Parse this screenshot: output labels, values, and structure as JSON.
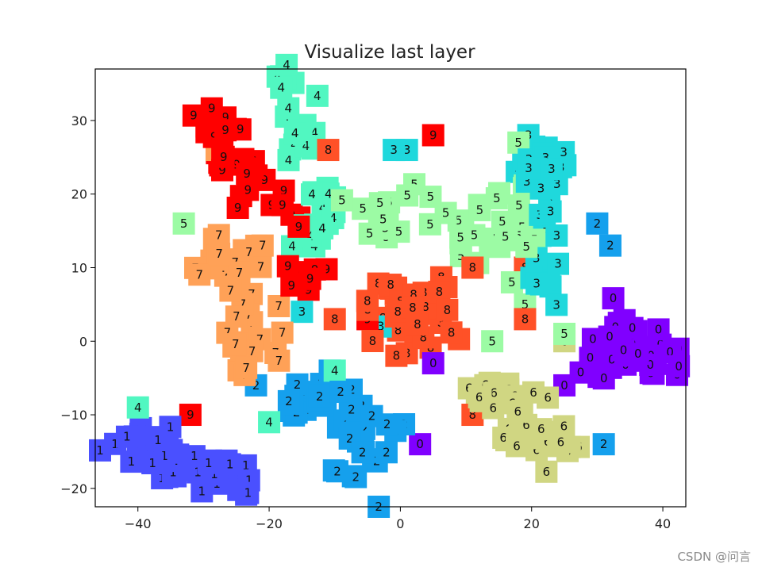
{
  "chart_data": {
    "type": "scatter",
    "title": "Visualize last layer",
    "xlim": [
      -46.5,
      43.5
    ],
    "ylim": [
      -22.5,
      37
    ],
    "xticks": [
      -40,
      -20,
      0,
      20,
      40
    ],
    "yticks": [
      -20,
      -10,
      0,
      10,
      20,
      30
    ],
    "xtick_labels": [
      "−40",
      "−20",
      "0",
      "20",
      "40"
    ],
    "ytick_labels": [
      "−20",
      "−10",
      "0",
      "10",
      "20",
      "30"
    ],
    "grid": false,
    "classes": [
      {
        "label": "0",
        "color": "#8000ff",
        "centers": [
          [
            37,
            -1
          ],
          [
            31,
            -3
          ],
          [
            39,
            -3
          ],
          [
            34,
            1
          ]
        ],
        "spread": [
          3.5,
          3.2
        ],
        "count": 45,
        "outliers": [
          [
            5,
            -3
          ],
          [
            3,
            -14
          ],
          [
            25,
            -6
          ]
        ]
      },
      {
        "label": "1",
        "color": "#4a50ff",
        "centers": [
          [
            -38,
            -15
          ],
          [
            -33,
            -17
          ],
          [
            -26,
            -17
          ],
          [
            -42,
            -13
          ]
        ],
        "spread": [
          3,
          2
        ],
        "count": 45,
        "outliers": []
      },
      {
        "label": "2",
        "color": "#15a0ed",
        "centers": [
          [
            -3,
            -14
          ],
          [
            -5,
            -18
          ],
          [
            -7,
            -11
          ],
          [
            -13,
            -7
          ],
          [
            -16,
            -8
          ]
        ],
        "spread": [
          3,
          3
        ],
        "count": 45,
        "outliers": [
          [
            31,
            -14
          ],
          [
            -22,
            -6
          ],
          [
            30,
            16
          ],
          [
            32,
            13
          ]
        ]
      },
      {
        "label": "3",
        "color": "#1fd8dc",
        "centers": [
          [
            22,
            20
          ],
          [
            23,
            14
          ],
          [
            22,
            8
          ],
          [
            21,
            25
          ]
        ],
        "spread": [
          2.5,
          3
        ],
        "count": 40,
        "outliers": [
          [
            -1,
            26
          ],
          [
            1,
            26
          ],
          [
            -3,
            2
          ],
          [
            2,
            5
          ],
          [
            -15,
            4
          ]
        ]
      },
      {
        "label": "4",
        "color": "#51f7c1",
        "centers": [
          [
            -16,
            31
          ],
          [
            -14,
            27
          ],
          [
            -12,
            20
          ],
          [
            -14,
            14
          ],
          [
            -19,
            35
          ]
        ],
        "spread": [
          2.4,
          2.8
        ],
        "count": 38,
        "outliers": [
          [
            -40,
            -9
          ],
          [
            -20,
            -11
          ],
          [
            -10,
            -4
          ]
        ]
      },
      {
        "label": "5",
        "color": "#9cfba4",
        "centers": [
          [
            5,
            19
          ],
          [
            12,
            14
          ],
          [
            16,
            14
          ],
          [
            19,
            20
          ],
          [
            -4,
            17
          ]
        ],
        "spread": [
          4.5,
          2.5
        ],
        "count": 40,
        "outliers": [
          [
            -33,
            16
          ],
          [
            18,
            27
          ],
          [
            19,
            5
          ],
          [
            25,
            1
          ],
          [
            14,
            0
          ],
          [
            17,
            8
          ]
        ]
      },
      {
        "label": "6",
        "color": "#d0d682",
        "centers": [
          [
            16,
            -8
          ],
          [
            20,
            -12
          ],
          [
            24,
            -14
          ],
          [
            13,
            -6
          ]
        ],
        "spread": [
          3,
          2.5
        ],
        "count": 40,
        "outliers": [
          [
            25,
            0
          ]
        ]
      },
      {
        "label": "7",
        "color": "#ffa157",
        "centers": [
          [
            -24,
            7
          ],
          [
            -23,
            2
          ],
          [
            -22,
            -2
          ],
          [
            -27,
            10
          ]
        ],
        "spread": [
          3.5,
          3.5
        ],
        "count": 42,
        "outliers": [
          [
            -21,
            13
          ],
          [
            -28,
            26
          ]
        ]
      },
      {
        "label": "8",
        "color": "#ff5127",
        "centers": [
          [
            2,
            4
          ],
          [
            -2,
            6
          ],
          [
            5,
            2
          ],
          [
            0,
            1
          ],
          [
            6,
            6
          ]
        ],
        "spread": [
          3,
          2.5
        ],
        "count": 42,
        "outliers": [
          [
            -10,
            3
          ],
          [
            -11,
            26
          ],
          [
            11,
            -10
          ],
          [
            11,
            10
          ],
          [
            19,
            10
          ],
          [
            19,
            3
          ]
        ]
      },
      {
        "label": "9",
        "color": "#ff0000",
        "centers": [
          [
            -25,
            26
          ],
          [
            -22,
            22
          ],
          [
            -17,
            17
          ],
          [
            -14,
            10
          ],
          [
            -28,
            28
          ]
        ],
        "spread": [
          2.8,
          2.6
        ],
        "count": 40,
        "outliers": [
          [
            5,
            28
          ],
          [
            -32,
            -10
          ],
          [
            -5,
            3
          ],
          [
            -14,
            7
          ]
        ]
      }
    ]
  },
  "watermark": "CSDN @问言"
}
